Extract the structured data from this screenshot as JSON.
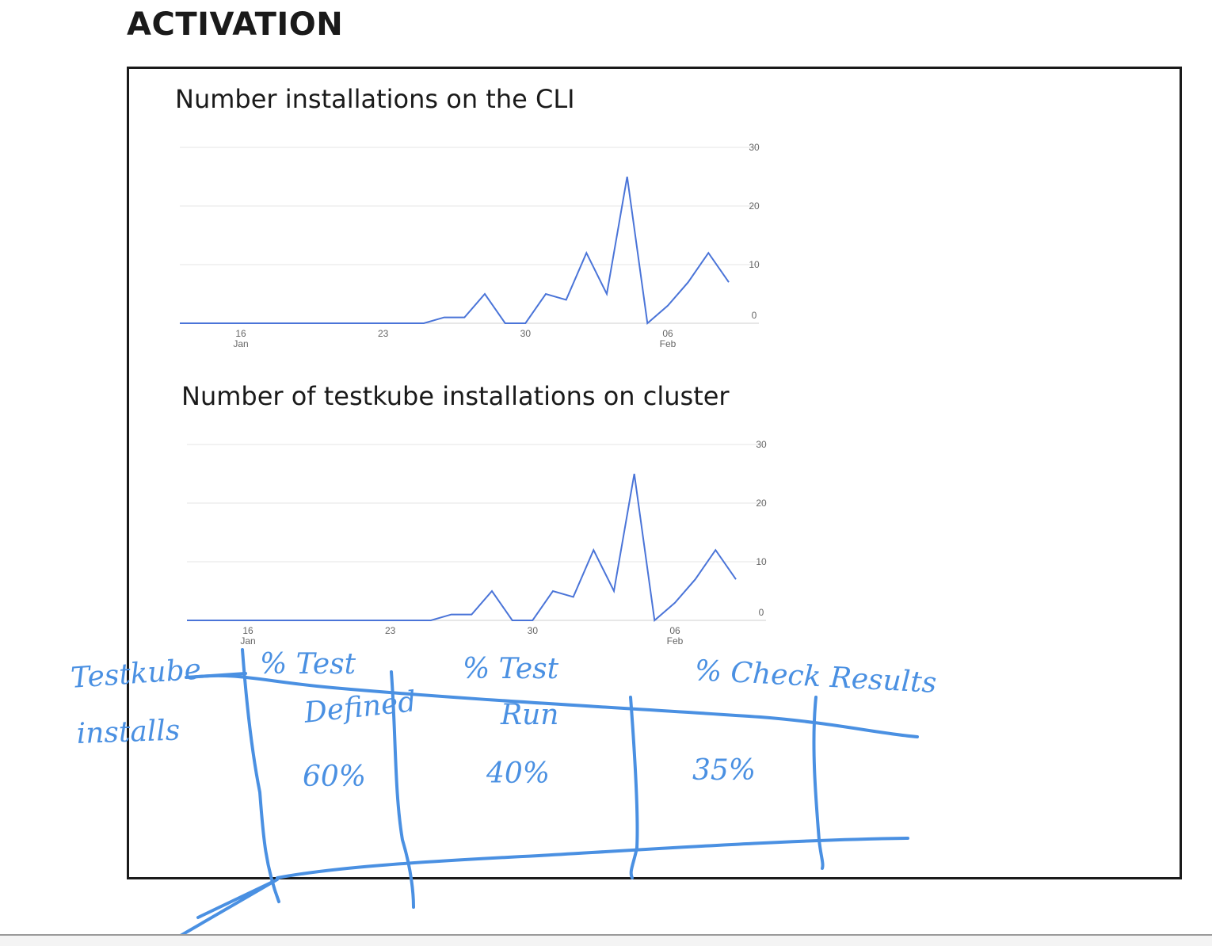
{
  "page": {
    "title": "ACTIVATION"
  },
  "colors": {
    "line": "#4a74d8",
    "ink": "#4a90e2",
    "grid": "#e6e6e6",
    "frame": "#1a1a1a"
  },
  "chart_data": [
    {
      "type": "line",
      "title": "Number installations on the CLI",
      "xlabel": "",
      "ylabel": "",
      "ylim": [
        0,
        30
      ],
      "yticks": [
        "0",
        "10",
        "20",
        "30"
      ],
      "y_axis_side": "right",
      "grid": true,
      "xticks": [
        {
          "day": "16",
          "month": "Jan"
        },
        {
          "day": "23",
          "month": ""
        },
        {
          "day": "30",
          "month": ""
        },
        {
          "day": "06",
          "month": "Feb"
        }
      ],
      "x": [
        "2022-01-13",
        "2022-01-14",
        "2022-01-15",
        "2022-01-16",
        "2022-01-17",
        "2022-01-18",
        "2022-01-19",
        "2022-01-20",
        "2022-01-21",
        "2022-01-22",
        "2022-01-23",
        "2022-01-24",
        "2022-01-25",
        "2022-01-26",
        "2022-01-27",
        "2022-01-28",
        "2022-01-29",
        "2022-01-30",
        "2022-01-31",
        "2022-02-01",
        "2022-02-02",
        "2022-02-03",
        "2022-02-04",
        "2022-02-05",
        "2022-02-06",
        "2022-02-07",
        "2022-02-08",
        "2022-02-09"
      ],
      "series": [
        {
          "values": [
            0,
            0,
            0,
            0,
            0,
            0,
            0,
            0,
            0,
            0,
            0,
            0,
            0,
            1,
            1,
            5,
            0,
            0,
            5,
            4,
            12,
            5,
            25,
            0,
            3,
            7,
            12,
            7
          ]
        }
      ]
    },
    {
      "type": "line",
      "title": "Number of testkube installations on cluster",
      "xlabel": "",
      "ylabel": "",
      "ylim": [
        0,
        30
      ],
      "yticks": [
        "0",
        "10",
        "20",
        "30"
      ],
      "y_axis_side": "right",
      "grid": true,
      "xticks": [
        {
          "day": "16",
          "month": "Jan"
        },
        {
          "day": "23",
          "month": ""
        },
        {
          "day": "30",
          "month": ""
        },
        {
          "day": "06",
          "month": "Feb"
        }
      ],
      "x": [
        "2022-01-13",
        "2022-01-14",
        "2022-01-15",
        "2022-01-16",
        "2022-01-17",
        "2022-01-18",
        "2022-01-19",
        "2022-01-20",
        "2022-01-21",
        "2022-01-22",
        "2022-01-23",
        "2022-01-24",
        "2022-01-25",
        "2022-01-26",
        "2022-01-27",
        "2022-01-28",
        "2022-01-29",
        "2022-01-30",
        "2022-01-31",
        "2022-02-01",
        "2022-02-02",
        "2022-02-03",
        "2022-02-04",
        "2022-02-05",
        "2022-02-06",
        "2022-02-07",
        "2022-02-08",
        "2022-02-09"
      ],
      "series": [
        {
          "values": [
            0,
            0,
            0,
            0,
            0,
            0,
            0,
            0,
            0,
            0,
            0,
            0,
            0,
            1,
            1,
            5,
            0,
            0,
            5,
            4,
            12,
            5,
            25,
            0,
            3,
            7,
            12,
            7
          ]
        }
      ]
    }
  ],
  "handwritten": {
    "row_label_line1": "Testkube",
    "row_label_line2": "installs",
    "col1_line1": "% Test",
    "col1_line2": "Defined",
    "col2_line1": "% Test",
    "col2_line2": "Run",
    "col3": "% Check Results",
    "val1": "60%",
    "val2": "40%",
    "val3": "35%"
  }
}
